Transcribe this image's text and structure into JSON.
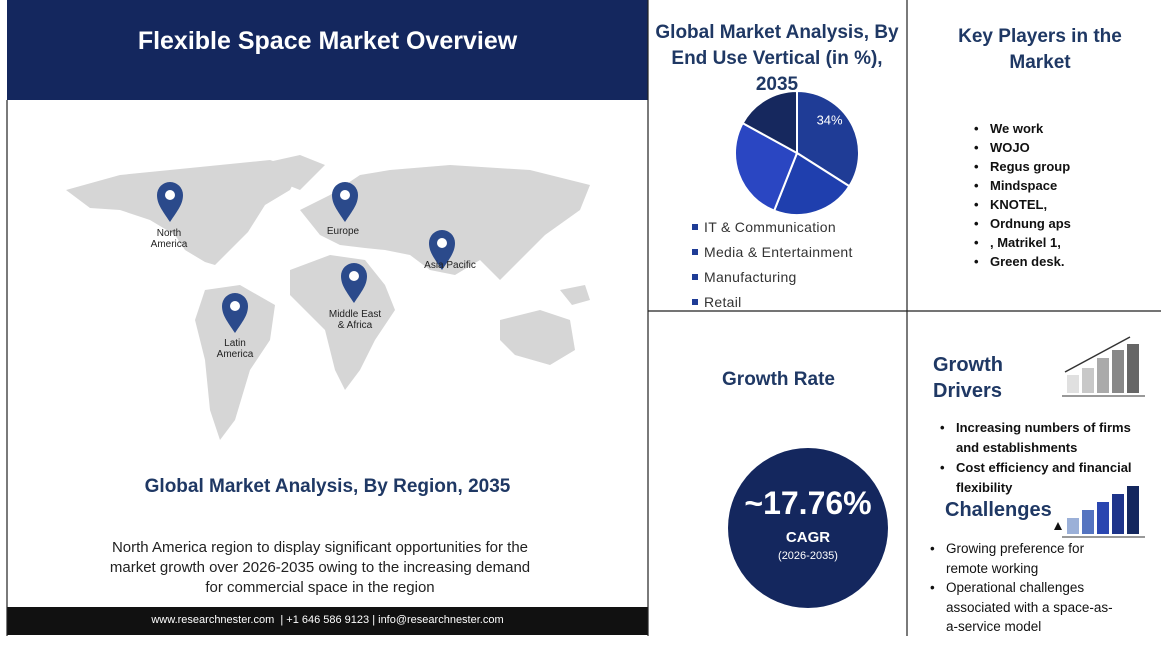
{
  "header": {
    "title": "Flexible Space Market Overview"
  },
  "map": {
    "regions": [
      "North America",
      "Europe",
      "Asia Pacific",
      "Middle East & Africa",
      "Latin America"
    ]
  },
  "region_section": {
    "title": "Global Market Analysis,  By Region, 2035",
    "text": "North America region to display significant opportunities for the market growth over 2026-2035 owing to the increasing demand for commercial space in the region"
  },
  "footer": {
    "contact": "www.researchnester.com  | +1 646 586 9123 | info@researchnester.com"
  },
  "chart_data": {
    "type": "pie",
    "title": "Global Market Analysis, By End Use Vertical (in %), 2035",
    "categories": [
      "IT & Communication",
      "Media & Entertainment",
      "Manufacturing",
      "Retail"
    ],
    "values": [
      34,
      22,
      27,
      17
    ],
    "value_labels": [
      "34%",
      null,
      null,
      null
    ],
    "colors": [
      "#1f3c96",
      "#1f3fae",
      "#2a46c2",
      "#16285e"
    ],
    "legend_color": "#1f3c96"
  },
  "key_players": {
    "title": "Key Players in the Market",
    "items": [
      "We work",
      "WOJO",
      "Regus group",
      "Mindspace",
      "KNOTEL,",
      "Ordnung aps",
      ", Matrikel 1,",
      "Green desk."
    ]
  },
  "growth_rate": {
    "title": "Growth Rate",
    "value": "~17.76%",
    "label": "CAGR",
    "period": "(2026-2035)"
  },
  "growth_drivers": {
    "title": "Growth Drivers",
    "items": [
      "Increasing numbers of firms and establishments",
      "Cost efficiency and financial flexibility"
    ]
  },
  "challenges": {
    "title": "Challenges",
    "items": [
      "Growing preference for remote working",
      "Operational challenges associated with a space-as-a-service model"
    ]
  }
}
